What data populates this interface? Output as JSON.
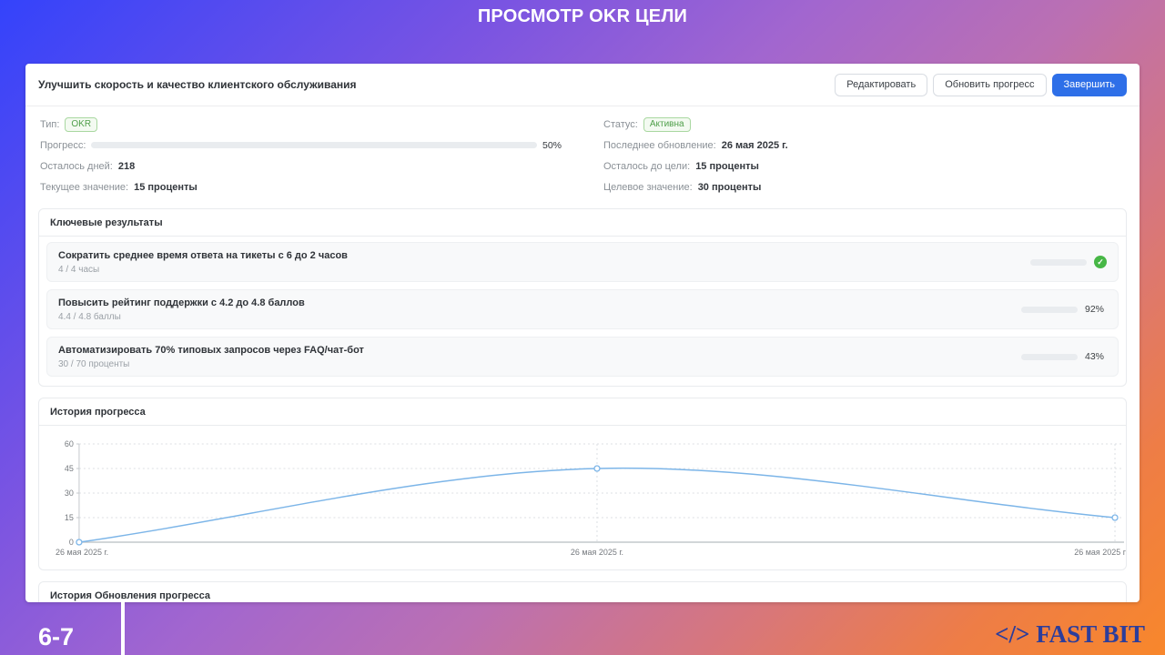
{
  "slide": {
    "title": "ПРОСМОТР OKR ЦЕЛИ",
    "page_number": "6-7",
    "logo_icon": "</>",
    "logo_text": "FAST BIT"
  },
  "card": {
    "title": "Улучшить скорость и качество клиентского обслуживания",
    "buttons": {
      "edit": "Редактировать",
      "update": "Обновить прогресс",
      "complete": "Завершить"
    },
    "details": {
      "type_label": "Тип:",
      "type_badge": "OKR",
      "status_label": "Статус:",
      "status_badge": "Активна",
      "progress_label": "Прогресс:",
      "progress_value": 50,
      "progress_percent": "50%",
      "last_update_label": "Последнее обновление:",
      "last_update_value": "26 мая 2025 г.",
      "days_left_label": "Осталось дней:",
      "days_left_value": "218",
      "to_goal_label": "Осталось до цели:",
      "to_goal_value": "15 проценты",
      "current_label": "Текущее значение:",
      "current_value": "15 проценты",
      "target_label": "Целевое значение:",
      "target_value": "30 проценты"
    },
    "key_results": {
      "section_title": "Ключевые результаты",
      "items": [
        {
          "title": "Сократить среднее время ответа на тикеты с 6 до 2 часов",
          "subtitle": "4 / 4 часы",
          "progress": 100,
          "status": "done",
          "percent_label": ""
        },
        {
          "title": "Повысить рейтинг поддержки с 4.2 до 4.8 баллов",
          "subtitle": "4.4 / 4.8 баллы",
          "progress": 92,
          "status": "active",
          "percent_label": "92%"
        },
        {
          "title": "Автоматизировать 70% типовых запросов через FAQ/чат-бот",
          "subtitle": "30 / 70 проценты",
          "progress": 43,
          "status": "active",
          "percent_label": "43%"
        }
      ]
    },
    "history_section_title": "История прогресса",
    "updates_section_title": "История Обновления прогресса"
  },
  "icons": {
    "check": "✓"
  },
  "chart_data": {
    "type": "line",
    "title": "История прогресса",
    "x_labels": [
      "26 мая 2025 г.",
      "26 мая 2025 г.",
      "26 мая 2025 г"
    ],
    "values": [
      0,
      45,
      15
    ],
    "y_ticks": [
      0,
      15,
      30,
      45,
      60
    ],
    "ylim": [
      0,
      60
    ],
    "line_color": "#7cb5e8",
    "grid": "dotted",
    "legend": "none"
  },
  "colors": {
    "accent_blue": "#2e6fe8",
    "progress_blue": "#2e78e8",
    "success_green": "#53c41f",
    "badge_green_text": "#4f9f4a",
    "gradient_start": "#3443fb",
    "gradient_end": "#f8872b",
    "logo_navy": "#2c3d9b"
  }
}
